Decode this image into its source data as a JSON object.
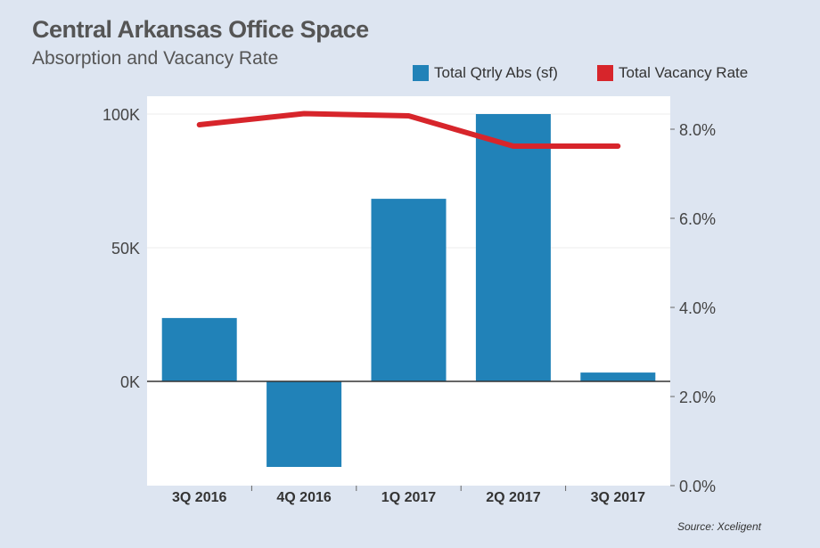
{
  "chart_data": {
    "type": "bar",
    "title": "Central Arkansas Office Space",
    "subtitle": "Absorption and Vacancy Rate",
    "categories": [
      "3Q 2016",
      "4Q 2016",
      "1Q 2017",
      "2Q 2017",
      "3Q 2017"
    ],
    "series": [
      {
        "name": "Total Qtrly Abs (sf)",
        "type": "bar",
        "axis": "left",
        "color": "#2182b8",
        "values": [
          23700,
          -32000,
          68300,
          100000,
          3300
        ]
      },
      {
        "name": "Total Vacancy Rate",
        "type": "line",
        "axis": "right",
        "color": "#d7252b",
        "values": [
          8.1,
          8.35,
          8.3,
          7.62,
          7.62
        ]
      }
    ],
    "left_axis": {
      "ticks": [
        0,
        50000,
        100000
      ],
      "tick_labels": [
        "0K",
        "50K",
        "100K"
      ],
      "ylim": [
        -39000,
        106000
      ]
    },
    "right_axis": {
      "ticks": [
        0,
        2,
        4,
        6,
        8
      ],
      "tick_labels": [
        "0.0%",
        "2.0%",
        "4.0%",
        "6.0%",
        "8.0%"
      ],
      "ylim": [
        0,
        8.7
      ]
    },
    "legend_position": "top-right",
    "source": "Source: Xceligent"
  }
}
